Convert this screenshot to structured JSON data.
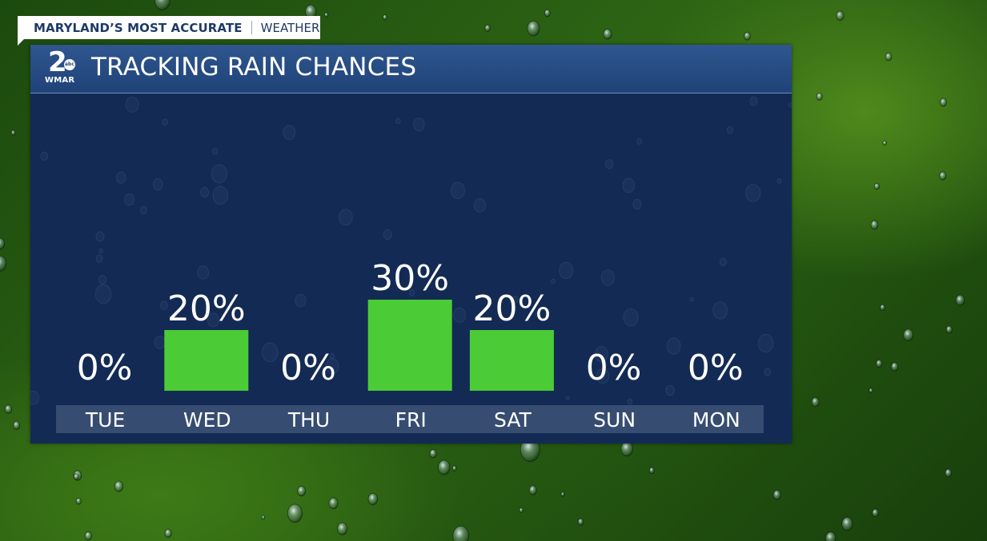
{
  "header": {
    "brand": "MARYLAND’S MOST ACCURATE",
    "section": "WEATHER"
  },
  "logo": {
    "number": "2",
    "network": "abc",
    "station": "WMAR"
  },
  "title": "TRACKING RAIN CHANCES",
  "colors": {
    "bar": "#4bcb35",
    "panel": "#132a54",
    "title_bar": "#26498a",
    "text": "#ffffff"
  },
  "chart_data": {
    "type": "bar",
    "title": "TRACKING RAIN CHANCES",
    "categories": [
      "TUE",
      "WED",
      "THU",
      "FRI",
      "SAT",
      "SUN",
      "MON"
    ],
    "values": [
      0,
      20,
      0,
      30,
      20,
      0,
      0
    ],
    "labels": [
      "0%",
      "20%",
      "0%",
      "30%",
      "20%",
      "0%",
      "0%"
    ],
    "unit": "%",
    "ylim": [
      0,
      50
    ],
    "grid": false,
    "legend": "none"
  }
}
